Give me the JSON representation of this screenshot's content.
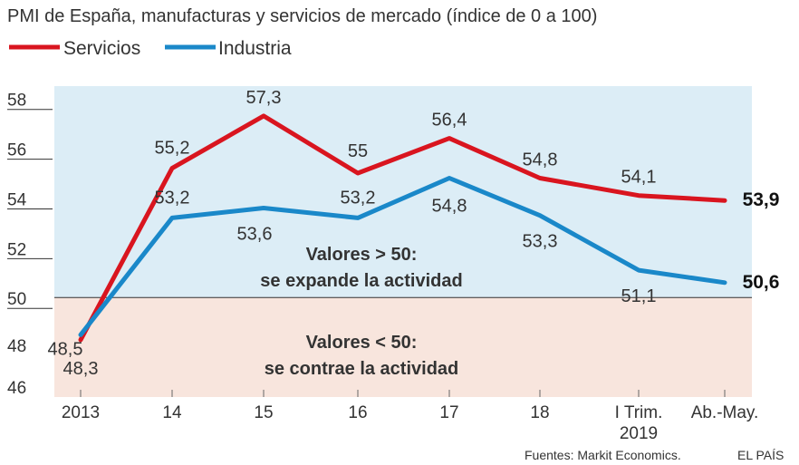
{
  "header": {
    "title": "PMI de España, manufacturas y servicios de mercado (índice de 0 a 100)"
  },
  "legend": {
    "items": [
      {
        "label": "Servicios",
        "color": "#d9151f"
      },
      {
        "label": "Industria",
        "color": "#1a88c9"
      }
    ]
  },
  "zones": {
    "above": {
      "line1": "Valores > 50:",
      "line2": "se expande la actividad",
      "color": "#dcedf6"
    },
    "below": {
      "line1": "Valores < 50:",
      "line2": "se contrae la actividad",
      "color": "#f8e5dd"
    }
  },
  "footer": {
    "source": "Fuentes: Markit Economics.",
    "brand": "EL PAÍS"
  },
  "chart_data": {
    "type": "line",
    "title": "PMI de España, manufacturas y servicios de mercado (índice de 0 a 100)",
    "categories": [
      "2013",
      "14",
      "15",
      "16",
      "17",
      "18",
      "I Trim.",
      "Ab.-May."
    ],
    "category_sublabels": {
      "I Trim.": "2019"
    },
    "series": [
      {
        "name": "Servicios",
        "color": "#d9151f",
        "values": [
          48.3,
          55.2,
          57.3,
          55,
          56.4,
          54.8,
          54.1,
          53.9
        ],
        "labels": [
          "48,3",
          "55,2",
          "57,3",
          "55",
          "56,4",
          "54,8",
          "54,1",
          "53,9"
        ]
      },
      {
        "name": "Industria",
        "color": "#1a88c9",
        "values": [
          48.5,
          53.2,
          53.6,
          53.2,
          54.8,
          53.3,
          51.1,
          50.6
        ],
        "labels": [
          "48,5",
          "53,2",
          "53,6",
          "53,2",
          "54,8",
          "53,3",
          "51,1",
          "50,6"
        ]
      }
    ],
    "yticks": [
      46,
      48,
      50,
      52,
      54,
      56,
      58
    ],
    "ylim": [
      46,
      58.5
    ],
    "threshold": 50,
    "grid": false,
    "legend_position": "top-left"
  }
}
